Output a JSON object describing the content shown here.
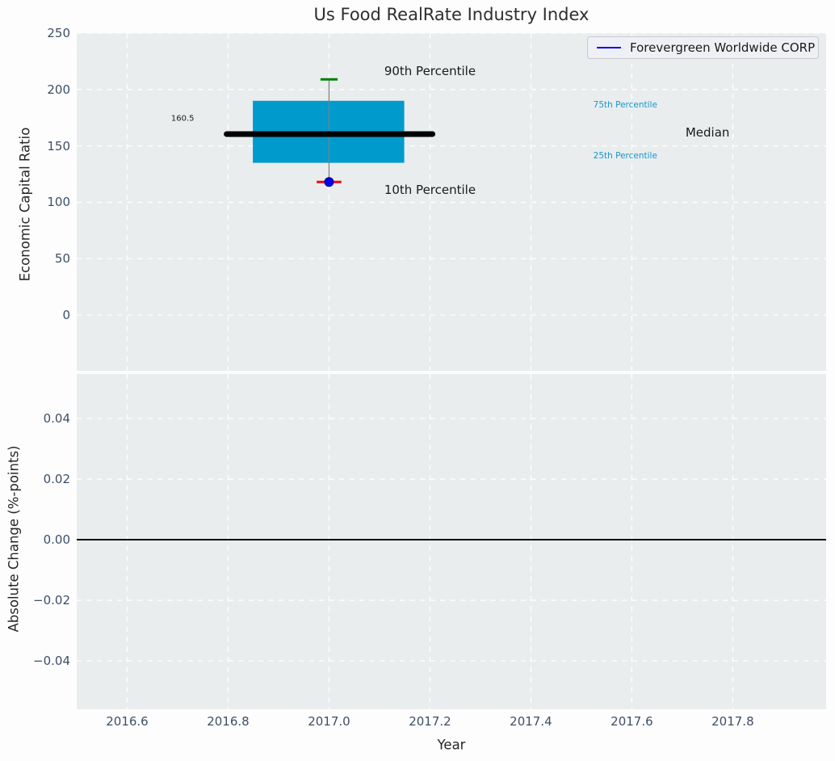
{
  "figure": {
    "background": "#fdfdfe",
    "axes_background": "#e9edee",
    "grid_color": "#ffffff",
    "tick_color": "#3d4f66"
  },
  "chart_data": [
    {
      "type": "box",
      "title": "Us Food RealRate Industry Index",
      "xlabel": "Year",
      "ylabel": "Economic Capital Ratio",
      "xlim": [
        2016.5,
        2017.985
      ],
      "ylim": [
        -49.4,
        250
      ],
      "xticks": [
        2016.6,
        2016.8,
        2017.0,
        2017.2,
        2017.4,
        2017.6,
        2017.8
      ],
      "xticklabels": [
        "2016.6",
        "2016.8",
        "2017.0",
        "2017.2",
        "2017.4",
        "2017.6",
        "2017.8"
      ],
      "yticks": [
        250,
        200,
        150,
        100,
        50,
        0
      ],
      "yticklabels": [
        "250",
        "200",
        "150",
        "100",
        "50",
        "0"
      ],
      "grid": true,
      "box": {
        "center_x": 2017.0,
        "p90": 209,
        "p75": 190,
        "median": 160.5,
        "p25": 135,
        "p10": 118,
        "box_x": [
          2016.849,
          2017.149
        ],
        "median_x": [
          2016.797,
          2017.205
        ],
        "cap90_halfwidth": 0.017,
        "cap10_halfwidth": 0.0245,
        "colors": {
          "box": "#009acd",
          "median": "#000000",
          "whisker": "#7f7f7f",
          "cap90": "#008000",
          "cap10": "#ff0000"
        }
      },
      "company_point": {
        "x": 2017.0,
        "y": 118,
        "fill": "#0000ee",
        "edge": "#00008b"
      },
      "annotations": [
        {
          "text": "90th Percentile",
          "x": 2017.2,
          "y": 216,
          "color": "#1a1a1a",
          "size": 15
        },
        {
          "text": "10th Percentile",
          "x": 2017.2,
          "y": 111,
          "color": "#1a1a1a",
          "size": 15
        },
        {
          "text": "Median",
          "x": 2017.75,
          "y": 162,
          "color": "#1a1a1a",
          "size": 15
        },
        {
          "text": "75th Percentile",
          "x": 2017.587,
          "y": 186.5,
          "color": "#1598ce",
          "size": 10.5
        },
        {
          "text": "25th Percentile",
          "x": 2017.587,
          "y": 141,
          "color": "#1598ce",
          "size": 10.5
        },
        {
          "text": "160.5",
          "x": 2016.71,
          "y": 174,
          "color": "#1a1a1a",
          "size": 10
        }
      ],
      "legend": {
        "position": "upper right",
        "entries": [
          {
            "label": "Forevergreen Worldwide CORP",
            "color": "#0000ff"
          }
        ]
      }
    },
    {
      "type": "line",
      "ylabel": "Absolute Change (%-points)",
      "ylim": [
        -0.056,
        0.0547
      ],
      "yticks": [
        0.04,
        0.02,
        0.0,
        -0.02,
        -0.04
      ],
      "yticklabels": [
        "0.04",
        "0.02",
        "0.00",
        "−0.02",
        "−0.04"
      ],
      "grid": true,
      "zero_line": {
        "y": 0.0,
        "color": "#000000"
      }
    }
  ]
}
